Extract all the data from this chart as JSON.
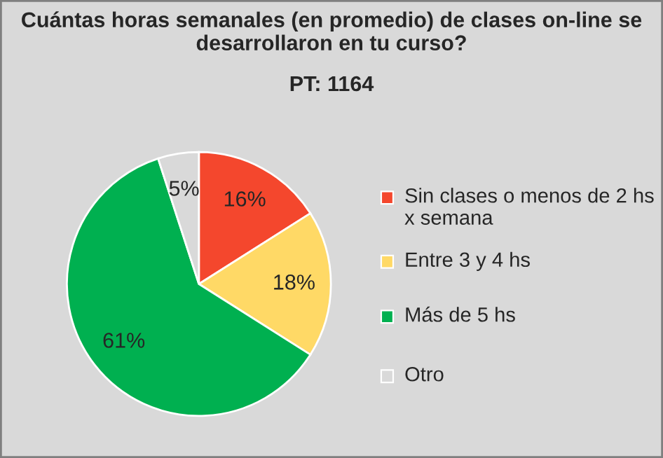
{
  "chart_data": {
    "type": "pie",
    "title": "Cuántas horas semanales (en promedio) de clases on-line se desarrollaron en tu curso?",
    "subtitle": "PT: 1164",
    "categories": [
      "Sin clases o menos de 2 hs x semana",
      "Entre 3 y 4 hs",
      "Más de 5 hs",
      "Otro"
    ],
    "values": [
      16,
      18,
      61,
      5
    ],
    "value_labels": [
      "16%",
      "18%",
      "61%",
      "5%"
    ],
    "colors": [
      "#f4472d",
      "#ffd966",
      "#00b050",
      "#d9d9d9"
    ],
    "legend": "right"
  }
}
